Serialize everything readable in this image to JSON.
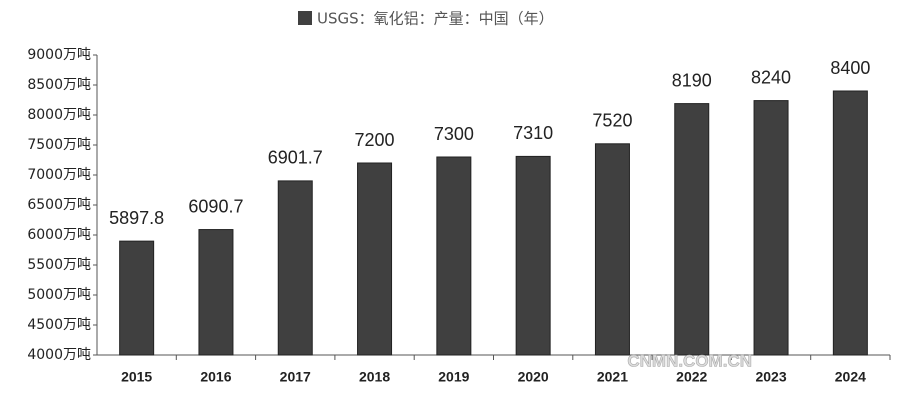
{
  "chart_data": {
    "type": "bar",
    "legend_label": "USGS：氧化铝：产量：中国（年）",
    "categories": [
      "2015",
      "2016",
      "2017",
      "2018",
      "2019",
      "2020",
      "2021",
      "2022",
      "2023",
      "2024"
    ],
    "values": [
      5897.8,
      6090.7,
      6901.7,
      7200,
      7300,
      7310,
      7520,
      8190,
      8240,
      8400
    ],
    "color": "#404040",
    "ylim": [
      4000,
      9000
    ],
    "yticks": [
      {
        "value": 4000,
        "label": "4000万吨"
      },
      {
        "value": 4500,
        "label": "4500万吨"
      },
      {
        "value": 5000,
        "label": "5000万吨"
      },
      {
        "value": 5500,
        "label": "5500万吨"
      },
      {
        "value": 6000,
        "label": "6000万吨"
      },
      {
        "value": 6500,
        "label": "6500万吨"
      },
      {
        "value": 7000,
        "label": "7000万吨"
      },
      {
        "value": 7500,
        "label": "7500万吨"
      },
      {
        "value": 8000,
        "label": "8000万吨"
      },
      {
        "value": 8500,
        "label": "8500万吨"
      },
      {
        "value": 9000,
        "label": "9000万吨"
      }
    ],
    "grid": false,
    "watermark": "CNMN.COM.CN"
  }
}
